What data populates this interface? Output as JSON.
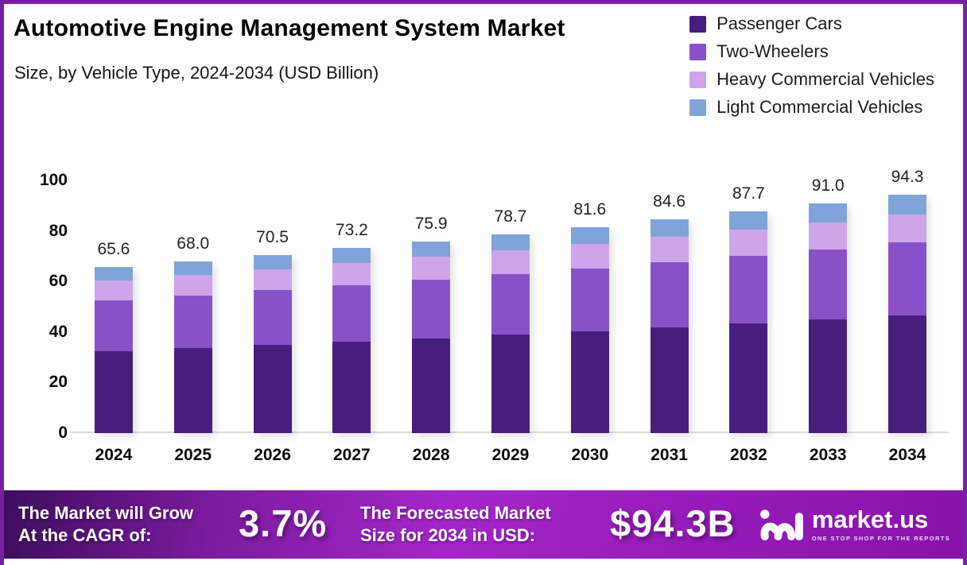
{
  "chart_data": {
    "type": "bar",
    "stacked": true,
    "title": "Automotive Engine Management System Market",
    "subtitle": "Size, by Vehicle Type, 2024-2034 (USD Billion)",
    "categories": [
      "2024",
      "2025",
      "2026",
      "2027",
      "2028",
      "2029",
      "2030",
      "2031",
      "2032",
      "2033",
      "2034"
    ],
    "series": [
      {
        "name": "Passenger Cars",
        "color": "#471e7e",
        "values": [
          32.5,
          33.7,
          34.9,
          36.2,
          37.5,
          38.9,
          40.3,
          41.8,
          43.3,
          44.9,
          46.6
        ]
      },
      {
        "name": "Two-Wheelers",
        "color": "#8951c8",
        "values": [
          20.1,
          20.8,
          21.6,
          22.4,
          23.2,
          24.0,
          24.9,
          25.8,
          26.8,
          27.8,
          28.8
        ]
      },
      {
        "name": "Heavy Commercial Vehicles",
        "color": "#cda6ea",
        "values": [
          7.7,
          8.0,
          8.3,
          8.7,
          9.0,
          9.4,
          9.7,
          10.1,
          10.4,
          10.8,
          11.2
        ]
      },
      {
        "name": "Light Commercial Vehicles",
        "color": "#80a4d8",
        "values": [
          5.3,
          5.5,
          5.7,
          5.9,
          6.2,
          6.4,
          6.7,
          6.9,
          7.2,
          7.5,
          7.7
        ]
      }
    ],
    "totals": [
      65.6,
      68.0,
      70.5,
      73.2,
      75.9,
      78.7,
      81.6,
      84.6,
      87.7,
      91.0,
      94.3
    ],
    "y_axis": {
      "ticks": [
        0,
        20,
        40,
        60,
        80,
        100
      ],
      "range": [
        0,
        100
      ]
    },
    "grid": false,
    "legend_position": "top-right",
    "value_labels": "totals shown above each bar, one decimal"
  },
  "legend": {
    "items": [
      {
        "label": "Passenger Cars",
        "color": "#471e7e"
      },
      {
        "label": "Two-Wheelers",
        "color": "#8951c8"
      },
      {
        "label": "Heavy Commercial Vehicles",
        "color": "#cda6ea"
      },
      {
        "label": "Light Commercial Vehicles",
        "color": "#80a4d8"
      }
    ]
  },
  "banner": {
    "cagr": {
      "line1": "The Market will Grow",
      "line2": "At the CAGR of:",
      "value": "3.7%"
    },
    "forecast": {
      "line1": "The Forecasted Market",
      "line2": "Size for 2034 in USD:",
      "value": "$94.3B"
    },
    "brand": {
      "name": "market.us",
      "tagline": "ONE STOP SHOP FOR THE REPORTS"
    }
  },
  "colors": {
    "frame_border": "#7a1fa2",
    "baseline": "#dcdcdc",
    "banner_gradient_start": "#3d0e5d",
    "banner_gradient_mid": "#a426c9",
    "banner_gradient_end": "#8712aa"
  }
}
